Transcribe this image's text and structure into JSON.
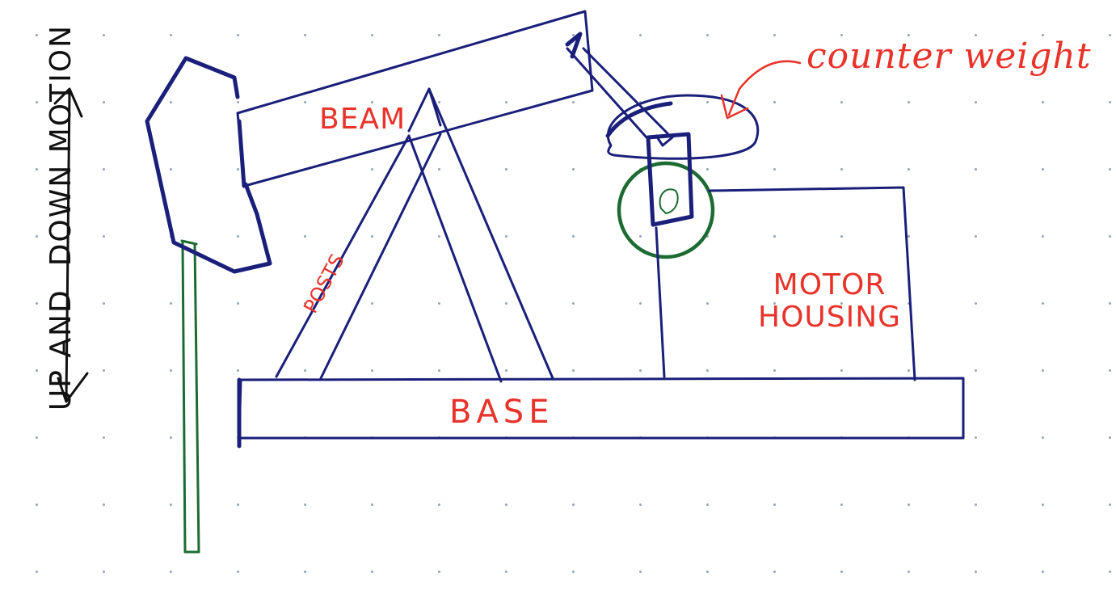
{
  "labels": {
    "beam": "BEAM",
    "base": "BASE",
    "posts": "POSTS",
    "motor_housing_line1": "MOTOR",
    "motor_housing_line2": "HOUSING",
    "counter_weight": "counter weight",
    "motion_word1": "UP AND",
    "motion_word2": "DOWN MOTION"
  },
  "colors": {
    "structure": "#1a1f7a",
    "rod_and_crank": "#1d6b33",
    "labels": "#e8332a",
    "motion_arrow": "#111111",
    "grid_dots": "#9aa6b4"
  }
}
